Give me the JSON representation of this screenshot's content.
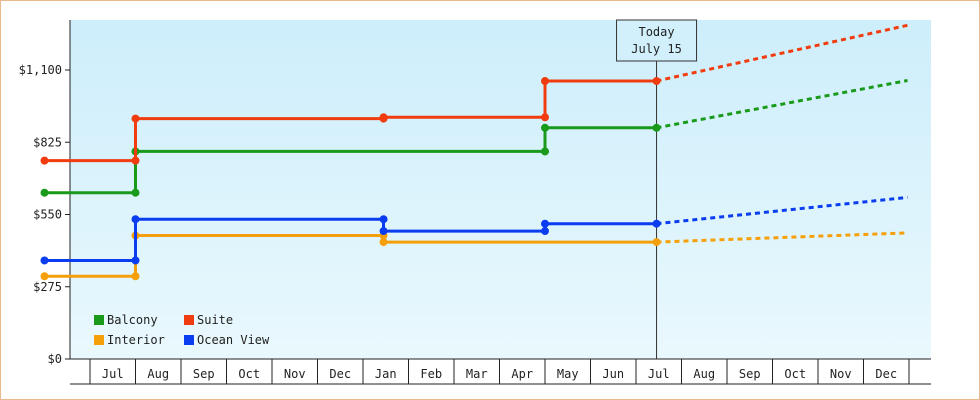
{
  "chart_data": {
    "type": "line",
    "step": true,
    "title": "",
    "xlabel": "",
    "ylabel": "",
    "ylim": [
      0,
      1100
    ],
    "yticks": [
      0,
      275,
      550,
      825,
      1100
    ],
    "ytick_labels": [
      "$0",
      "$275",
      "$550",
      "$825",
      "$1,100"
    ],
    "x_range": [
      "2024-06-01",
      "2025-12-31"
    ],
    "month_labels": [
      "Jul",
      "Aug",
      "Sep",
      "Oct",
      "Nov",
      "Dec",
      "Jan",
      "Feb",
      "Mar",
      "Apr",
      "May",
      "Jun",
      "Jul",
      "Aug",
      "Sep",
      "Oct",
      "Nov",
      "Dec"
    ],
    "grid": false,
    "background": "light blue gradient",
    "legend": {
      "position": "bottom-left"
    },
    "today": {
      "date": "2025-07-15",
      "line1": "Today",
      "line2": "July 15"
    },
    "series": [
      {
        "name": "Balcony",
        "color": "#1a9a1a",
        "points": [
          [
            "2024-06-01",
            633
          ],
          [
            "2024-08-01",
            633
          ],
          [
            "2024-08-01",
            790
          ],
          [
            "2025-05-01",
            790
          ],
          [
            "2025-05-01",
            880
          ],
          [
            "2025-07-15",
            880
          ]
        ],
        "forecast": [
          [
            "2025-07-15",
            880
          ],
          [
            "2025-12-31",
            1060
          ]
        ]
      },
      {
        "name": "Suite",
        "color": "#f03c0f",
        "points": [
          [
            "2024-06-01",
            755
          ],
          [
            "2024-08-01",
            755
          ],
          [
            "2024-08-01",
            915
          ],
          [
            "2025-01-15",
            915
          ],
          [
            "2025-01-15",
            920
          ],
          [
            "2025-05-01",
            920
          ],
          [
            "2025-05-01",
            1058
          ],
          [
            "2025-07-15",
            1058
          ]
        ],
        "forecast": [
          [
            "2025-07-15",
            1058
          ],
          [
            "2025-12-31",
            1270
          ]
        ]
      },
      {
        "name": "Interior",
        "color": "#f5a00a",
        "points": [
          [
            "2024-06-01",
            315
          ],
          [
            "2024-08-01",
            315
          ],
          [
            "2024-08-01",
            470
          ],
          [
            "2025-01-15",
            470
          ],
          [
            "2025-01-15",
            445
          ],
          [
            "2025-07-15",
            445
          ]
        ],
        "forecast": [
          [
            "2025-07-15",
            445
          ],
          [
            "2025-12-31",
            480
          ]
        ]
      },
      {
        "name": "Ocean View",
        "color": "#0a3cf0",
        "points": [
          [
            "2024-06-01",
            375
          ],
          [
            "2024-08-01",
            375
          ],
          [
            "2024-08-01",
            532
          ],
          [
            "2025-01-15",
            532
          ],
          [
            "2025-01-15",
            487
          ],
          [
            "2025-05-01",
            487
          ],
          [
            "2025-05-01",
            515
          ],
          [
            "2025-07-15",
            515
          ]
        ],
        "forecast": [
          [
            "2025-07-15",
            515
          ],
          [
            "2025-12-31",
            615
          ]
        ]
      }
    ]
  }
}
